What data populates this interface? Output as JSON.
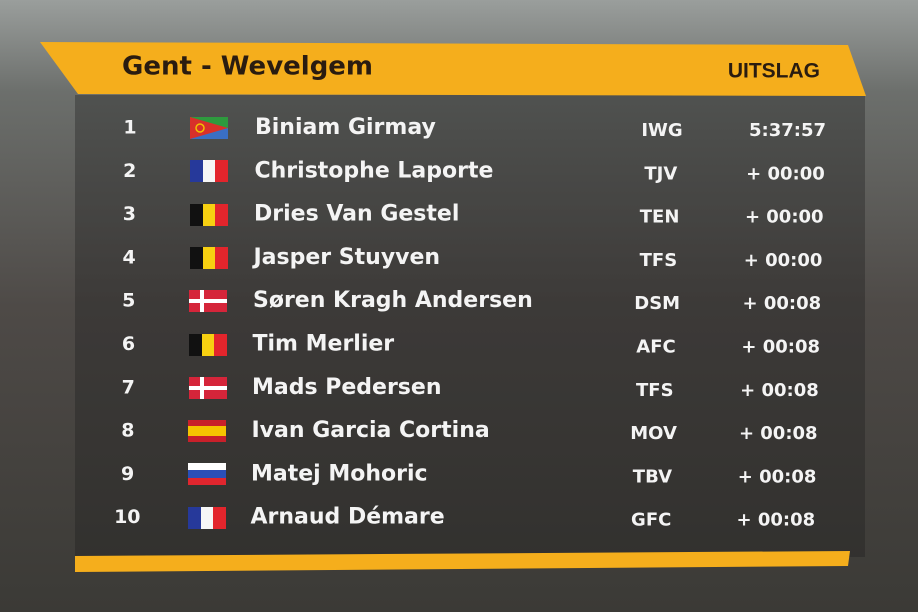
{
  "header": {
    "title": "Gent - Wevelgem",
    "label": "UITSLAG"
  },
  "table": {
    "rows": [
      [
        1,
        "Biniam Girmay",
        "IWG",
        "5:37:57"
      ],
      [
        2,
        "Christophe Laporte",
        "TJV",
        "+ 00:00"
      ],
      [
        3,
        "Dries Van Gestel",
        "TEN",
        "+ 00:00"
      ],
      [
        4,
        "Jasper Stuyven",
        "TFS",
        "+ 00:00"
      ],
      [
        5,
        "Søren Kragh Andersen",
        "DSM",
        "+ 00:08"
      ],
      [
        6,
        "Tim Merlier",
        "AFC",
        "+ 00:08"
      ],
      [
        7,
        "Mads Pedersen",
        "TFS",
        "+ 00:08"
      ],
      [
        8,
        "Ivan Garcia Cortina",
        "MOV",
        "+ 00:08"
      ],
      [
        9,
        "Matej Mohoric",
        "TBV",
        "+ 00:08"
      ],
      [
        10,
        "Arnaud Démare",
        "GFC",
        "+ 00:08"
      ]
    ]
  }
}
